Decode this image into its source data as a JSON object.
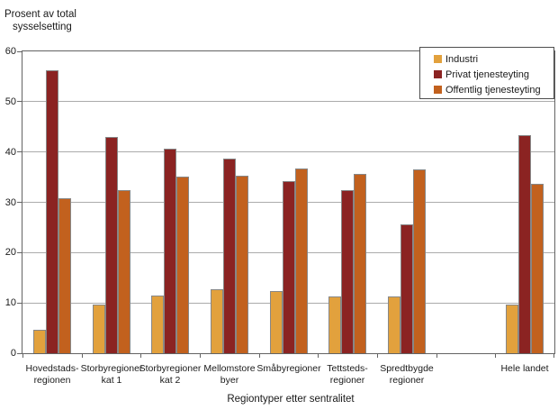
{
  "title": {
    "line1": "Prosent av total",
    "line2": "sysselsetting"
  },
  "chart_data": {
    "type": "bar",
    "title": "Prosent av total sysselsetting",
    "xlabel": "Regiontyper etter sentralitet",
    "ylabel": "Prosent av total sysselsetting",
    "ylim": [
      0,
      60
    ],
    "yticks": [
      0,
      10,
      20,
      30,
      40,
      50,
      60
    ],
    "grid": "horizontal",
    "legend_position": "top-right-inside",
    "num_slots": 9,
    "slot_indices": [
      0,
      1,
      2,
      3,
      4,
      5,
      6,
      8
    ],
    "categories": [
      "Hovedstadsregionen",
      "Storbyregioner kat 1",
      "Storbyregioner kat 2",
      "Mellomstore byer",
      "Småbyregioner",
      "Tettstedsregioner",
      "Spredtbygde regioner",
      "Hele landet"
    ],
    "category_label_lines": [
      [
        "Hovedstads-",
        "regionen"
      ],
      [
        "Storbyregioner",
        "kat 1"
      ],
      [
        "Storbyregioner",
        "kat 2"
      ],
      [
        "Mellomstore",
        "byer"
      ],
      [
        "Småbyregioner"
      ],
      [
        "Tettsteds-",
        "regioner"
      ],
      [
        "Spredtbygde",
        "regioner"
      ],
      [
        "Hele landet"
      ]
    ],
    "series": [
      {
        "name": "Industri",
        "color": "#E2A13D",
        "values": [
          4.6,
          9.7,
          11.5,
          12.8,
          12.4,
          11.2,
          11.2,
          9.6
        ]
      },
      {
        "name": "Privat tjenesteyting",
        "color": "#8B2322",
        "values": [
          56.2,
          43.0,
          40.6,
          38.7,
          34.2,
          32.4,
          25.7,
          43.3
        ]
      },
      {
        "name": "Offentlig tjenesteyting",
        "color": "#C2611E",
        "values": [
          30.8,
          32.4,
          35.1,
          35.2,
          36.7,
          35.7,
          36.6,
          33.7
        ]
      }
    ]
  }
}
